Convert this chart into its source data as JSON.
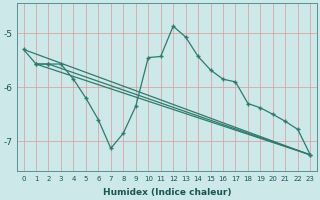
{
  "xlabel": "Humidex (Indice chaleur)",
  "background_color": "#cce8e8",
  "grid_color": "#dd9999",
  "line_color": "#2e7b6e",
  "xlim": [
    -0.5,
    23.5
  ],
  "ylim": [
    -7.55,
    -4.45
  ],
  "yticks": [
    -7,
    -6,
    -5
  ],
  "xticks": [
    0,
    1,
    2,
    3,
    4,
    5,
    6,
    7,
    8,
    9,
    10,
    11,
    12,
    13,
    14,
    15,
    16,
    17,
    18,
    19,
    20,
    21,
    22,
    23
  ],
  "curve_x": [
    0,
    1,
    2,
    3,
    4,
    5,
    6,
    7,
    8,
    9,
    10,
    11,
    12,
    13,
    14,
    15,
    16,
    17,
    18,
    19,
    20,
    21,
    22,
    23
  ],
  "curve_y": [
    -5.3,
    -5.57,
    -5.57,
    -5.57,
    -5.85,
    -6.2,
    -6.6,
    -7.13,
    -6.85,
    -6.35,
    -5.45,
    -5.43,
    -4.87,
    -5.07,
    -5.43,
    -5.68,
    -5.85,
    -5.9,
    -6.3,
    -6.38,
    -6.5,
    -6.63,
    -6.78,
    -7.25
  ],
  "line1_x": [
    1,
    2,
    23
  ],
  "line1_y": [
    -5.57,
    -5.57,
    -7.25
  ],
  "line2_x": [
    1,
    23
  ],
  "line2_y": [
    -5.57,
    -7.25
  ],
  "line3_x": [
    0,
    23
  ],
  "line3_y": [
    -5.3,
    -7.25
  ]
}
